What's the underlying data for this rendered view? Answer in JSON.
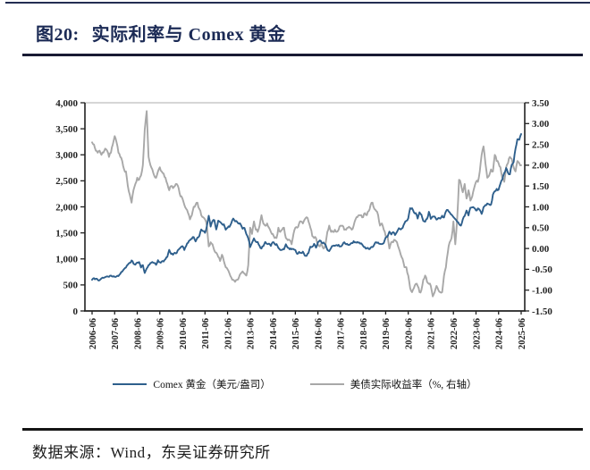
{
  "page": {
    "figure_number": "图20:",
    "figure_title": "实际利率与 Comex 黄金",
    "source_text": "数据来源：Wind，东吴证券研究所"
  },
  "colors": {
    "title_navy": "#1b2a55",
    "rule_dark": "#181a33",
    "gold_line": "#2e5f8c",
    "yield_line": "#a8a8a8",
    "axis": "#333333"
  },
  "chart_data": {
    "type": "line",
    "title": "实际利率与 Comex 黄金",
    "frequency": "monthly",
    "x_start": "2006-06",
    "x_end": "2025-06",
    "x_tick_labels": [
      "2006-06",
      "2007-06",
      "2008-06",
      "2009-06",
      "2010-06",
      "2011-06",
      "2012-06",
      "2013-06",
      "2014-06",
      "2015-06",
      "2016-06",
      "2017-06",
      "2018-06",
      "2019-06",
      "2020-06",
      "2021-06",
      "2022-06",
      "2023-06",
      "2024-06",
      "2025-06"
    ],
    "y_left": {
      "min": 0,
      "max": 4000,
      "tick_step": 500,
      "ticks": [
        "4,000",
        "3,500",
        "3,000",
        "2,500",
        "2,000",
        "1,500",
        "1,000",
        "500",
        "0"
      ]
    },
    "y_right": {
      "min": -1.5,
      "max": 3.5,
      "tick_step": 0.5,
      "ticks": [
        "3.50",
        "3.00",
        "2.50",
        "2.00",
        "1.50",
        "1.00",
        "0.50",
        "0.00",
        "-0.50",
        "-1.00",
        "-1.50"
      ]
    },
    "legend_position": "bottom",
    "grid": false,
    "series": [
      {
        "name": "Comex 黄金（美元/盎司）",
        "axis": "left",
        "color": "#2e5f8c",
        "values": [
          600,
          630,
          620,
          600,
          590,
          625,
          635,
          650,
          665,
          655,
          680,
          660,
          655,
          665,
          670,
          715,
          755,
          805,
          835,
          890,
          925,
          970,
          910,
          890,
          930,
          940,
          835,
          880,
          730,
          815,
          880,
          920,
          940,
          920,
          885,
          975,
          935,
          950,
          950,
          995,
          1040,
          1175,
          1095,
          1080,
          1120,
          1115,
          1180,
          1215,
          1245,
          1170,
          1250,
          1310,
          1360,
          1385,
          1420,
          1335,
          1410,
          1440,
          1565,
          1535,
          1500,
          1630,
          1830,
          1620,
          1725,
          1745,
          1565,
          1735,
          1710,
          1670,
          1665,
          1560,
          1600,
          1615,
          1690,
          1775,
          1720,
          1715,
          1675,
          1660,
          1580,
          1595,
          1475,
          1395,
          1225,
          1310,
          1395,
          1330,
          1325,
          1250,
          1200,
          1245,
          1325,
          1285,
          1295,
          1250,
          1320,
          1285,
          1285,
          1210,
          1170,
          1175,
          1185,
          1280,
          1215,
          1185,
          1185,
          1190,
          1170,
          1095,
          1135,
          1115,
          1140,
          1065,
          1060,
          1115,
          1235,
          1235,
          1290,
          1215,
          1320,
          1355,
          1310,
          1315,
          1275,
          1175,
          1150,
          1210,
          1250,
          1250,
          1265,
          1270,
          1240,
          1270,
          1320,
          1280,
          1270,
          1275,
          1305,
          1340,
          1320,
          1325,
          1315,
          1300,
          1250,
          1225,
          1205,
          1190,
          1215,
          1225,
          1280,
          1320,
          1315,
          1290,
          1285,
          1305,
          1410,
          1425,
          1525,
          1470,
          1515,
          1460,
          1520,
          1590,
          1565,
          1595,
          1685,
          1730,
          1780,
          1975,
          1975,
          1895,
          1880,
          1775,
          1895,
          1850,
          1730,
          1715,
          1770,
          1905,
          1770,
          1815,
          1815,
          1755,
          1785,
          1775,
          1830,
          1795,
          1910,
          1940,
          1895,
          1850,
          1805,
          1765,
          1715,
          1670,
          1640,
          1760,
          1825,
          1930,
          1835,
          1985,
          1990,
          1980,
          1930,
          1970,
          1940,
          1865,
          1995,
          2035,
          2065,
          2050,
          2045,
          2235,
          2300,
          2345,
          2330,
          2445,
          2525,
          2650,
          2745,
          2650,
          2625,
          2810,
          2860,
          3120,
          3300,
          3290,
          3400
        ]
      },
      {
        "name": "美债实际收益率（%, 右轴）",
        "axis": "right",
        "color": "#a8a8a8",
        "values": [
          2.55,
          2.5,
          2.35,
          2.3,
          2.35,
          2.25,
          2.3,
          2.4,
          2.35,
          2.2,
          2.3,
          2.5,
          2.7,
          2.55,
          2.3,
          2.2,
          2.1,
          1.9,
          1.85,
          1.5,
          1.3,
          1.1,
          1.4,
          1.55,
          1.7,
          1.65,
          1.75,
          2.0,
          2.85,
          3.3,
          2.2,
          2.0,
          1.9,
          1.75,
          1.7,
          1.85,
          1.95,
          1.85,
          1.8,
          1.7,
          1.55,
          1.4,
          1.5,
          1.45,
          1.5,
          1.55,
          1.45,
          1.25,
          1.2,
          1.05,
          0.95,
          0.85,
          0.7,
          0.8,
          1.0,
          1.05,
          1.1,
          0.95,
          0.8,
          0.75,
          0.7,
          0.55,
          0.05,
          0.15,
          0.1,
          -0.05,
          -0.1,
          -0.2,
          -0.3,
          -0.15,
          -0.3,
          -0.45,
          -0.5,
          -0.6,
          -0.7,
          -0.75,
          -0.8,
          -0.75,
          -0.7,
          -0.6,
          -0.55,
          -0.6,
          -0.65,
          -0.4,
          0.5,
          0.35,
          0.65,
          0.45,
          0.4,
          0.55,
          0.8,
          0.6,
          0.55,
          0.6,
          0.5,
          0.4,
          0.35,
          0.25,
          0.25,
          0.5,
          0.4,
          0.45,
          0.5,
          0.25,
          0.2,
          0.2,
          0.1,
          0.35,
          0.5,
          0.5,
          0.6,
          0.65,
          0.6,
          0.7,
          0.75,
          0.65,
          0.5,
          0.3,
          0.25,
          0.25,
          0.1,
          0.05,
          0.1,
          0.0,
          0.1,
          0.4,
          0.55,
          0.4,
          0.4,
          0.45,
          0.4,
          0.45,
          0.55,
          0.55,
          0.45,
          0.45,
          0.5,
          0.5,
          0.45,
          0.55,
          0.7,
          0.75,
          0.8,
          0.8,
          0.75,
          0.85,
          0.8,
          0.9,
          1.05,
          1.1,
          0.95,
          0.9,
          0.8,
          0.55,
          0.6,
          0.45,
          0.3,
          0.3,
          0.0,
          0.15,
          0.15,
          0.2,
          0.15,
          0.0,
          -0.15,
          -0.25,
          -0.45,
          -0.45,
          -0.65,
          -0.95,
          -1.05,
          -0.95,
          -0.85,
          -0.9,
          -1.05,
          -1.0,
          -0.75,
          -0.65,
          -0.8,
          -0.85,
          -0.9,
          -1.15,
          -1.05,
          -0.9,
          -1.0,
          -1.05,
          -1.05,
          -0.65,
          -0.45,
          -0.1,
          0.15,
          0.25,
          0.65,
          0.1,
          0.7,
          1.65,
          1.55,
          1.35,
          1.55,
          1.2,
          1.4,
          1.15,
          1.25,
          1.45,
          1.6,
          1.6,
          1.85,
          2.25,
          2.45,
          2.05,
          1.7,
          1.75,
          1.9,
          1.85,
          2.25,
          2.1,
          2.05,
          1.95,
          1.7,
          1.6,
          1.95,
          2.05,
          2.2,
          2.15,
          1.95,
          1.85,
          2.1,
          2.05,
          2.0
        ]
      }
    ]
  }
}
